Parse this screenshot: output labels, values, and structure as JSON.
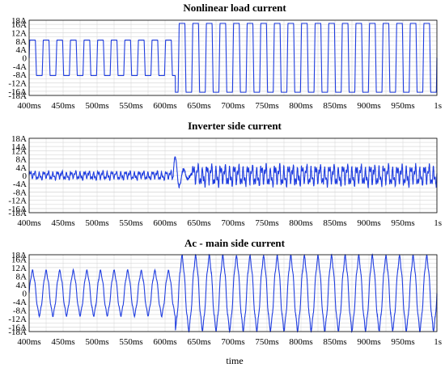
{
  "chart_data": [
    {
      "type": "line",
      "title": "Nonlinear load current",
      "xlabel": "",
      "ylabel": "",
      "xlim": [
        0.4,
        1.0
      ],
      "ylim": [
        -18,
        18
      ],
      "yticks": [
        "18A",
        "16A",
        "12A",
        "8A",
        "4A",
        "0",
        "-4A",
        "-8A",
        "-12A",
        "-16A",
        "-18A"
      ],
      "ytick_values": [
        18,
        16,
        12,
        8,
        4,
        0,
        -4,
        -8,
        -12,
        -16,
        -18
      ],
      "xticks": [
        "400ms",
        "450ms",
        "500ms",
        "550ms",
        "600ms",
        "650ms",
        "700ms",
        "750ms",
        "800ms",
        "850ms",
        "900ms",
        "950ms",
        "1s"
      ],
      "xtick_values": [
        0.4,
        0.45,
        0.5,
        0.55,
        0.6,
        0.65,
        0.7,
        0.75,
        0.8,
        0.85,
        0.9,
        0.95,
        1.0
      ],
      "grid": true,
      "series": [
        {
          "color": "#1f3de0",
          "frequency_hz": 50,
          "segments": [
            {
              "t_start": 0.4,
              "t_end": 0.615,
              "shape": "square",
              "amplitude": 8.5
            },
            {
              "t_start": 0.615,
              "t_end": 1.0,
              "shape": "square",
              "amplitude": 16.5
            }
          ]
        }
      ]
    },
    {
      "type": "line",
      "title": "Inverter side current",
      "xlabel": "",
      "ylabel": "",
      "xlim": [
        0.4,
        1.0
      ],
      "ylim": [
        -18,
        18
      ],
      "yticks": [
        "18A",
        "14A",
        "12A",
        "8A",
        "4A",
        "0",
        "-4A",
        "-8A",
        "-12A",
        "-16A",
        "-18A"
      ],
      "ytick_values": [
        18,
        14,
        12,
        8,
        4,
        0,
        -4,
        -8,
        -12,
        -16,
        -18
      ],
      "xticks": [
        "400ms",
        "450ms",
        "500ms",
        "550ms",
        "600ms",
        "650ms",
        "700ms",
        "750ms",
        "800ms",
        "850ms",
        "900ms",
        "950ms",
        "1s"
      ],
      "xtick_values": [
        0.4,
        0.45,
        0.5,
        0.55,
        0.6,
        0.65,
        0.7,
        0.75,
        0.8,
        0.85,
        0.9,
        0.95,
        1.0
      ],
      "grid": true,
      "series": [
        {
          "color": "#1f3de0",
          "frequency_hz": 50,
          "segments": [
            {
              "t_start": 0.4,
              "t_end": 0.612,
              "shape": "ripple",
              "amplitude": 2.5
            },
            {
              "t_start": 0.612,
              "t_end": 0.64,
              "shape": "transient",
              "amplitude": 12
            },
            {
              "t_start": 0.64,
              "t_end": 1.0,
              "shape": "ripple",
              "amplitude": 6
            }
          ]
        }
      ]
    },
    {
      "type": "line",
      "title": "Ac - main side current",
      "xlabel": "time",
      "ylabel": "",
      "xlim": [
        0.4,
        1.0
      ],
      "ylim": [
        -18,
        18
      ],
      "yticks": [
        "18A",
        "16A",
        "12A",
        "8A",
        "4A",
        "0",
        "-4A",
        "-8A",
        "-12A",
        "-16A",
        "-18A"
      ],
      "ytick_values": [
        18,
        16,
        12,
        8,
        4,
        0,
        -4,
        -8,
        -12,
        -16,
        -18
      ],
      "xticks": [
        "400ms",
        "450ms",
        "500ms",
        "550ms",
        "600ms",
        "650ms",
        "700ms",
        "750ms",
        "800ms",
        "850ms",
        "900ms",
        "950ms",
        "1s"
      ],
      "xtick_values": [
        0.4,
        0.45,
        0.5,
        0.55,
        0.6,
        0.65,
        0.7,
        0.75,
        0.8,
        0.85,
        0.9,
        0.95,
        1.0
      ],
      "grid": true,
      "series": [
        {
          "color": "#1f3de0",
          "frequency_hz": 50,
          "segments": [
            {
              "t_start": 0.4,
              "t_end": 0.615,
              "shape": "sine",
              "amplitude": 10
            },
            {
              "t_start": 0.615,
              "t_end": 1.0,
              "shape": "sine",
              "amplitude": 16.5
            }
          ]
        }
      ]
    }
  ]
}
